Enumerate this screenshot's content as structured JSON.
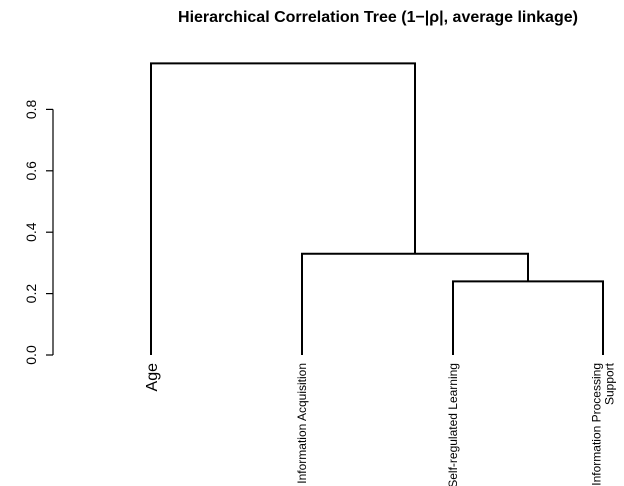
{
  "chart_data": {
    "type": "dendrogram",
    "title": "Hierarchical Correlation Tree (1−|ρ|, average linkage)",
    "ylim": [
      0,
      0.8
    ],
    "yticks": [
      0.0,
      0.2,
      0.4,
      0.6,
      0.8
    ],
    "ytick_labels": [
      "0.0",
      "0.2",
      "0.4",
      "0.6",
      "0.8"
    ],
    "leaves": [
      {
        "id": "age",
        "lines": [
          "Age"
        ]
      },
      {
        "id": "info-acq",
        "lines": [
          "Information Acquisition"
        ]
      },
      {
        "id": "srl",
        "lines": [
          "Self-regulated Learning"
        ]
      },
      {
        "id": "ips",
        "lines": [
          "Information Processing",
          "Support"
        ]
      }
    ],
    "merges": [
      {
        "left": "srl",
        "right": "ips",
        "height": 0.24
      },
      {
        "left": "info-acq",
        "right": "m0",
        "height": 0.33
      },
      {
        "left": "age",
        "right": "m1",
        "height": 0.95
      }
    ]
  }
}
